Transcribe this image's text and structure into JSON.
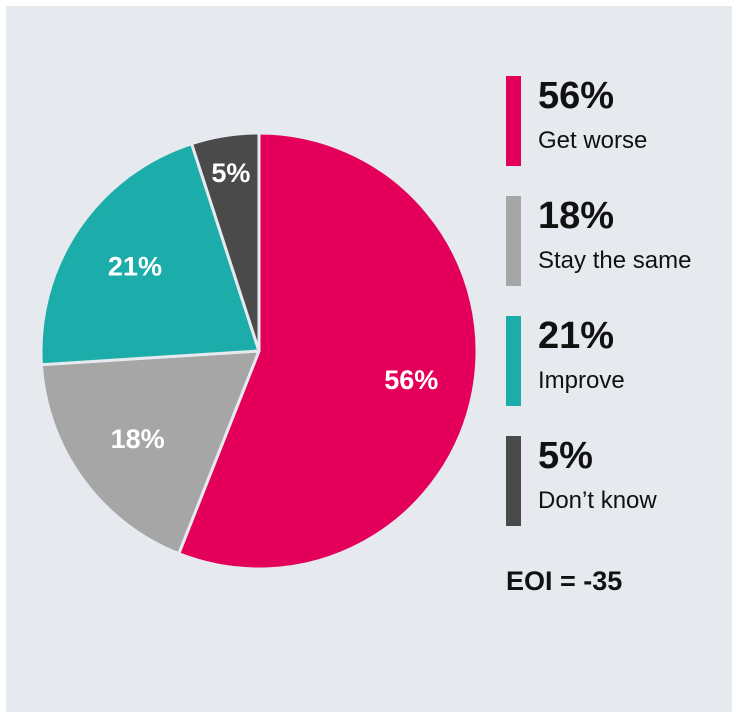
{
  "chart_data": {
    "type": "pie",
    "title": "",
    "slices": [
      {
        "label": "Get worse",
        "value": 56,
        "display": "56%",
        "color": "#e4005a"
      },
      {
        "label": "Stay the same",
        "value": 18,
        "display": "18%",
        "color": "#a6a6a6"
      },
      {
        "label": "Improve",
        "value": 21,
        "display": "21%",
        "color": "#1cadab"
      },
      {
        "label": "Don’t know",
        "value": 5,
        "display": "5%",
        "color": "#4a4a4a"
      }
    ],
    "legend_position": "right",
    "annotation": "EOI = -35"
  }
}
